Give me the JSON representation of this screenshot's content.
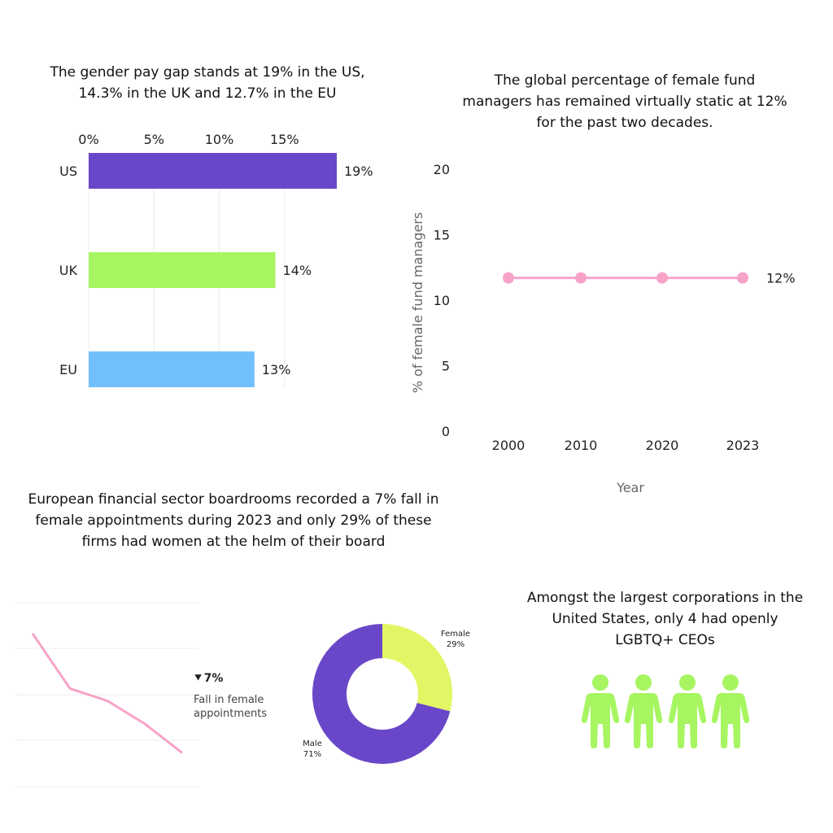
{
  "panels": {
    "pay_gap": {
      "title": "The gender pay gap stands at 19% in the US, 14.3% in the UK and 12.7% in the EU"
    },
    "fund_managers": {
      "title": "The global percentage of female fund managers has remained virtually static at 12% for the past two decades."
    },
    "boardrooms": {
      "title": "European financial sector boardrooms recorded a 7% fall in female appointments during 2023 and only 29% of these firms had women at the helm of their board",
      "fall_value": "7%",
      "fall_desc": "Fall in female appointments"
    },
    "lgbtq": {
      "title": "Amongst the largest corporations in the United States, only 4 had openly LGBTQ+ CEOs",
      "icon_count": 4,
      "icon": "person-icon",
      "color": "#a6f561"
    }
  },
  "chart_data": [
    {
      "type": "bar",
      "orientation": "horizontal",
      "categories": [
        "US",
        "UK",
        "EU"
      ],
      "values": [
        19,
        14.3,
        12.7
      ],
      "value_labels": [
        "19%",
        "14%",
        "13%"
      ],
      "colors": [
        "#6a47c8",
        "#a6f561",
        "#72c0fb"
      ],
      "xticks": [
        "0%",
        "5%",
        "10%",
        "15%"
      ],
      "xtick_values": [
        0,
        5,
        10,
        15
      ],
      "xlim": [
        0,
        19
      ],
      "x_axis_position": "top",
      "grid": true
    },
    {
      "type": "line",
      "x": [
        "2000",
        "2010",
        "2020",
        "2023"
      ],
      "values": [
        11.7,
        11.7,
        11.7,
        11.7
      ],
      "end_label": "12%",
      "ylabel": "% of female fund managers",
      "xlabel": "Year",
      "yticks": [
        0,
        5,
        10,
        15,
        20
      ],
      "ylim": [
        0,
        20
      ],
      "color": "#f7a3c8",
      "markers": true,
      "grid": false
    },
    {
      "type": "line",
      "values": [
        10,
        6.4,
        5.6,
        4.1,
        2.2
      ],
      "ylim": [
        0,
        12
      ],
      "color": "#f7a3c8",
      "grid": true,
      "axis_labels": false
    },
    {
      "type": "pie",
      "donut": true,
      "slices": [
        {
          "name": "Female",
          "value": 29,
          "label": "29%",
          "color": "#e2f665"
        },
        {
          "name": "Male",
          "value": 71,
          "label": "71%",
          "color": "#6a47c8"
        }
      ]
    }
  ]
}
